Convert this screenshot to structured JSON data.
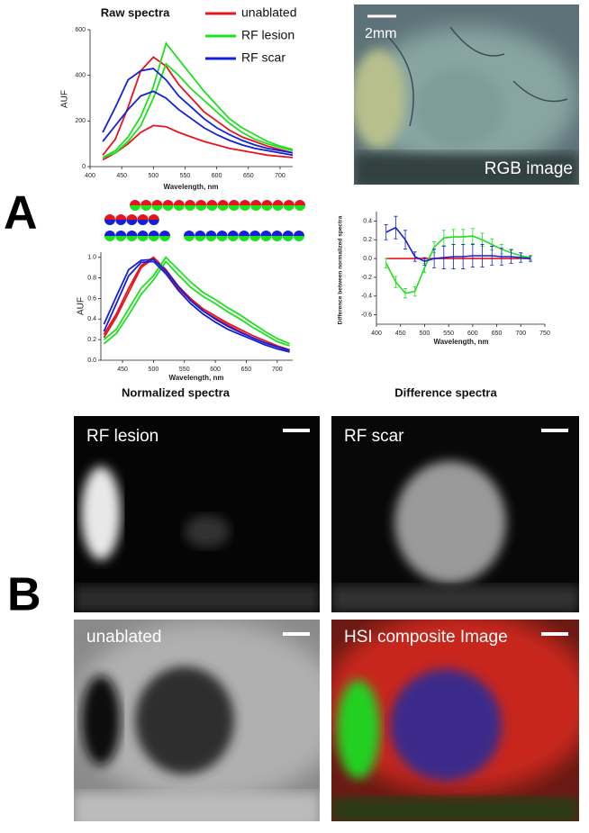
{
  "panel_labels": [
    "A",
    "B"
  ],
  "chart_data": [
    {
      "type": "line",
      "title": "Raw spectra",
      "xlabel": "Wavelength, nm",
      "ylabel": "AUF",
      "x": [
        420,
        440,
        460,
        480,
        500,
        520,
        540,
        560,
        580,
        600,
        620,
        640,
        660,
        680,
        700,
        720
      ],
      "xlim": [
        400,
        720
      ],
      "xticks": [
        400,
        450,
        500,
        550,
        600,
        650,
        700
      ],
      "ylim": [
        0,
        600
      ],
      "yticks": [
        0,
        200,
        400,
        600
      ],
      "series": [
        {
          "name": "unablated",
          "color": "#e8141c",
          "lines": [
            [
              50,
              120,
              260,
              420,
              480,
              440,
              360,
              300,
              240,
              200,
              160,
              130,
              110,
              90,
              75,
              60
            ],
            [
              30,
              60,
              100,
              150,
              180,
              175,
              150,
              130,
              110,
              95,
              80,
              70,
              60,
              50,
              45,
              40
            ]
          ]
        },
        {
          "name": "RF lesion",
          "color": "#1fe01f",
          "lines": [
            [
              40,
              70,
              130,
              220,
              350,
              540,
              470,
              400,
              330,
              270,
              210,
              170,
              140,
              110,
              90,
              75
            ],
            [
              40,
              60,
              110,
              180,
              300,
              450,
              400,
              340,
              290,
              240,
              190,
              150,
              120,
              100,
              85,
              70
            ]
          ]
        },
        {
          "name": "RF scar",
          "color": "#1420d8",
          "lines": [
            [
              150,
              260,
              380,
              420,
              430,
              380,
              310,
              260,
              210,
              170,
              140,
              115,
              95,
              80,
              70,
              60
            ],
            [
              110,
              180,
              250,
              310,
              330,
              300,
              250,
              210,
              170,
              140,
              115,
              95,
              80,
              70,
              60,
              50
            ]
          ]
        }
      ]
    },
    {
      "type": "line",
      "title": "Normalized spectra",
      "xlabel": "Wavelength, nm",
      "ylabel": "AUF",
      "x": [
        420,
        440,
        460,
        480,
        500,
        520,
        540,
        560,
        580,
        600,
        620,
        640,
        660,
        680,
        700,
        720
      ],
      "xlim": [
        415,
        725
      ],
      "xticks": [
        450,
        500,
        550,
        600,
        650,
        700
      ],
      "ylim": [
        0,
        1.05
      ],
      "yticks": [
        {
          "value": 0,
          "label": "0.0"
        },
        0.2,
        0.4,
        0.6,
        0.8,
        {
          "value": 1,
          "label": "1.0"
        }
      ],
      "series": [
        {
          "color": "#e8141c",
          "lines": [
            [
              0.25,
              0.45,
              0.7,
              0.92,
              1.0,
              0.88,
              0.72,
              0.6,
              0.5,
              0.43,
              0.36,
              0.3,
              0.24,
              0.19,
              0.14,
              0.1
            ],
            [
              0.22,
              0.42,
              0.66,
              0.9,
              0.99,
              0.86,
              0.7,
              0.58,
              0.48,
              0.41,
              0.34,
              0.28,
              0.22,
              0.17,
              0.13,
              0.09
            ]
          ]
        },
        {
          "color": "#1fe01f",
          "lines": [
            [
              0.2,
              0.3,
              0.5,
              0.7,
              0.82,
              1.0,
              0.88,
              0.76,
              0.66,
              0.59,
              0.51,
              0.44,
              0.36,
              0.28,
              0.21,
              0.16
            ],
            [
              0.16,
              0.26,
              0.44,
              0.64,
              0.78,
              0.96,
              0.83,
              0.71,
              0.62,
              0.55,
              0.47,
              0.4,
              0.32,
              0.25,
              0.18,
              0.14
            ]
          ]
        },
        {
          "color": "#1420d8",
          "lines": [
            [
              0.35,
              0.62,
              0.88,
              0.97,
              0.98,
              0.87,
              0.72,
              0.58,
              0.48,
              0.4,
              0.33,
              0.27,
              0.22,
              0.17,
              0.13,
              0.1
            ],
            [
              0.28,
              0.55,
              0.82,
              0.95,
              0.96,
              0.84,
              0.68,
              0.55,
              0.45,
              0.37,
              0.3,
              0.25,
              0.2,
              0.15,
              0.11,
              0.08
            ]
          ]
        }
      ]
    },
    {
      "type": "line",
      "title": "Difference spectra",
      "xlabel": "Wavelength, nm",
      "ylabel": "Difference between normalized spectra",
      "x": [
        420,
        440,
        460,
        480,
        500,
        520,
        540,
        560,
        580,
        600,
        620,
        640,
        660,
        680,
        700,
        720
      ],
      "xlim": [
        400,
        750
      ],
      "xticks": [
        400,
        450,
        500,
        550,
        600,
        650,
        700,
        750
      ],
      "ylim": [
        -0.7,
        0.5
      ],
      "yticks": [
        -0.6,
        -0.4,
        -0.2,
        {
          "value": 0,
          "label": "0.0"
        },
        0.2,
        0.4
      ],
      "series": [
        {
          "color": "#e8141c",
          "values": [
            0,
            0,
            0,
            0,
            0,
            0,
            0,
            0,
            0,
            0,
            0,
            0,
            0,
            0,
            0,
            0
          ]
        },
        {
          "color": "#1fe01f",
          "values": [
            -0.05,
            -0.25,
            -0.37,
            -0.35,
            -0.1,
            0.12,
            0.22,
            0.23,
            0.23,
            0.24,
            0.2,
            0.15,
            0.1,
            0.06,
            0.03,
            0.01
          ],
          "errors": [
            0.05,
            0.06,
            0.05,
            0.05,
            0.05,
            0.06,
            0.08,
            0.08,
            0.08,
            0.08,
            0.07,
            0.06,
            0.05,
            0.04,
            0.03,
            0.02
          ]
        },
        {
          "color": "#1420d8",
          "values": [
            0.28,
            0.33,
            0.2,
            0.02,
            -0.03,
            0,
            0.01,
            0.02,
            0.02,
            0.03,
            0.03,
            0.03,
            0.02,
            0.02,
            0.01,
            0
          ],
          "errors": [
            0.08,
            0.12,
            0.1,
            0.05,
            0.04,
            0.1,
            0.12,
            0.13,
            0.13,
            0.12,
            0.12,
            0.1,
            0.09,
            0.07,
            0.05,
            0.03
          ]
        }
      ]
    }
  ],
  "images": [
    {
      "label": "RGB image",
      "scale": "2mm"
    },
    {
      "label": "RF lesion"
    },
    {
      "label": "RF scar"
    },
    {
      "label": "unablated"
    },
    {
      "label": "HSI composite  Image"
    }
  ]
}
